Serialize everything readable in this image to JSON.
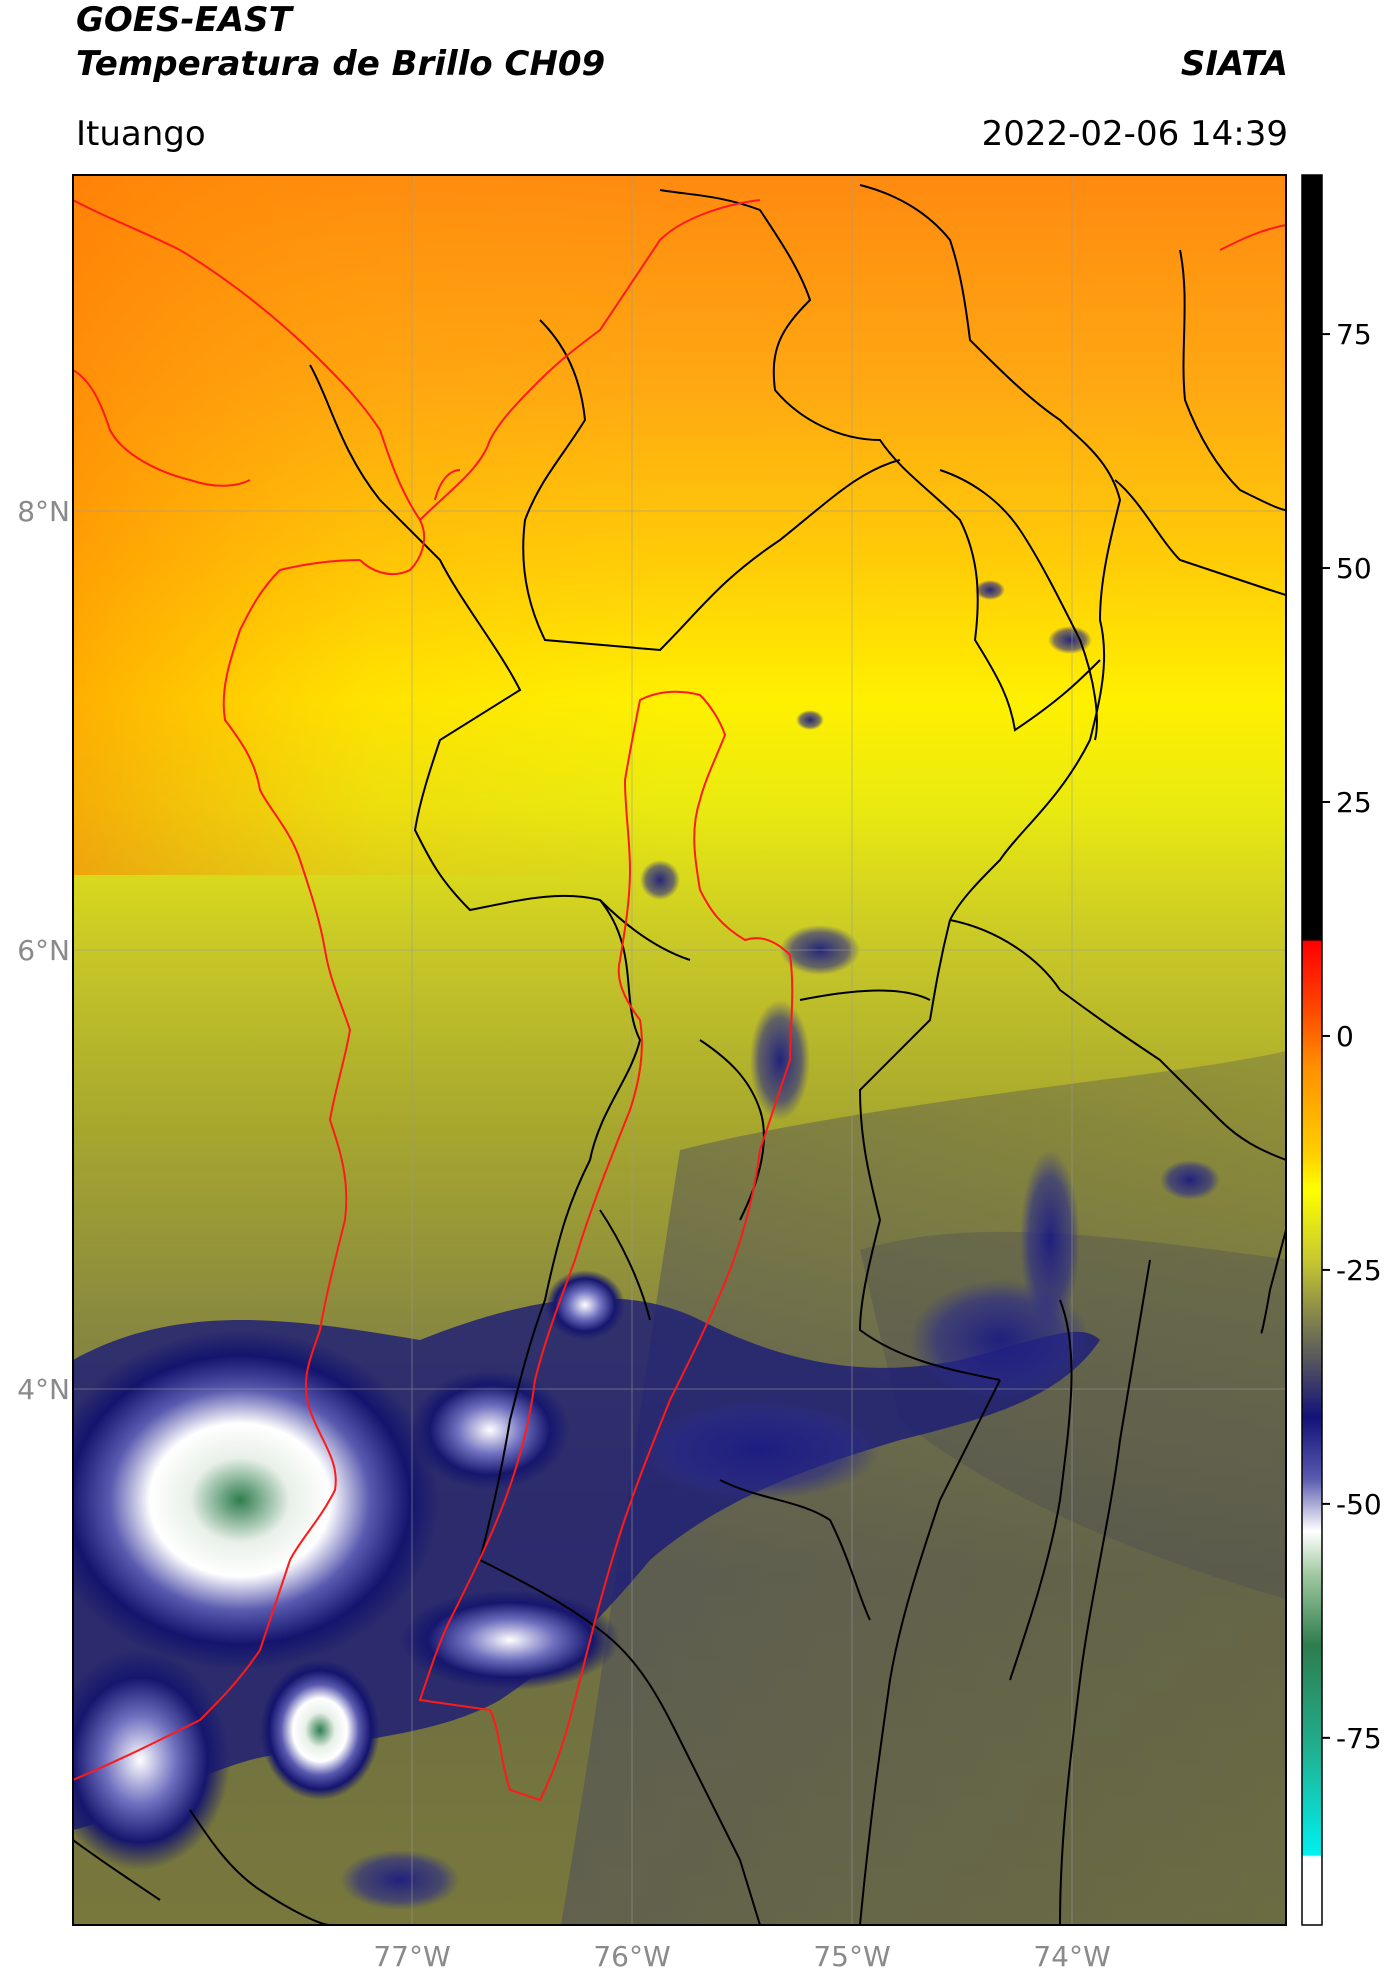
{
  "header": {
    "title_line1": "GOES-EAST",
    "title_line2": "Temperatura de Brillo CH09",
    "organization": "SIATA",
    "region": "Ituango",
    "timestamp": "2022-02-06 14:39"
  },
  "map": {
    "lon_range": [
      -78.55,
      -73.05
    ],
    "lat_range": [
      2.25,
      9.55
    ],
    "lon_ticks": [
      {
        "value": -77,
        "label": "77°W"
      },
      {
        "value": -76,
        "label": "76°W"
      },
      {
        "value": -75,
        "label": "75°W"
      },
      {
        "value": -74,
        "label": "74°W"
      }
    ],
    "lat_ticks": [
      {
        "value": 8,
        "label": "8°N"
      },
      {
        "value": 6,
        "label": "6°N"
      },
      {
        "value": 4,
        "label": "4°N"
      }
    ],
    "gridlines": true
  },
  "colorbar": {
    "range": [
      -95,
      92
    ],
    "ticks": [
      {
        "value": 75,
        "label": "75"
      },
      {
        "value": 50,
        "label": "50"
      },
      {
        "value": 25,
        "label": "25"
      },
      {
        "value": 0,
        "label": "0"
      },
      {
        "value": -25,
        "label": "-25"
      },
      {
        "value": -50,
        "label": "-50"
      },
      {
        "value": -75,
        "label": "-75"
      }
    ],
    "colors": {
      "black": "#000000",
      "red": "#ff2000",
      "orange": "#ff9000",
      "yellow": "#ffff00",
      "olive": "#9a9a30",
      "gray": "#505050",
      "navy": "#1a1a7a",
      "white": "#ffffff",
      "green": "#2e8b57",
      "cyan": "#00e5e5"
    }
  }
}
